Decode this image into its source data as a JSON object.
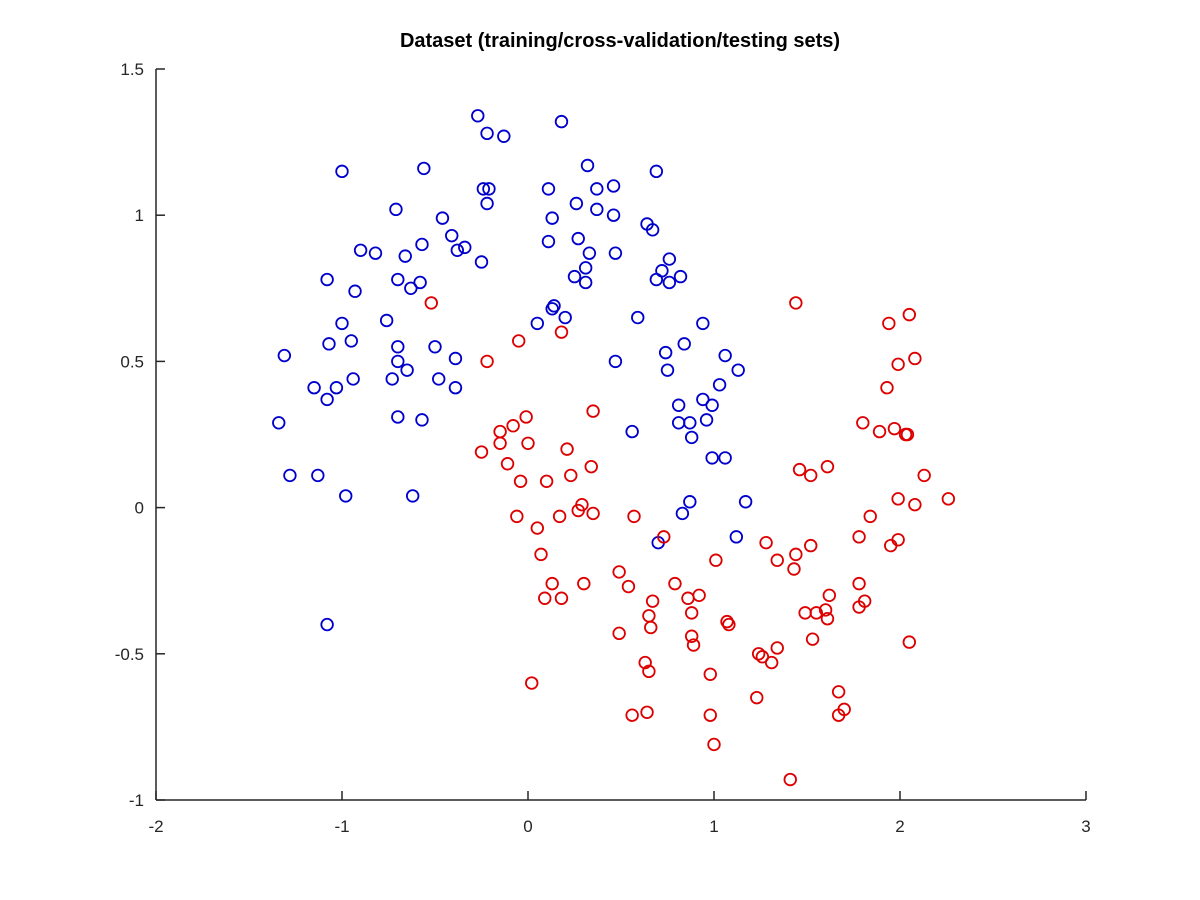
{
  "chart_data": {
    "type": "scatter",
    "title": "Dataset (training/cross-validation/testing sets)",
    "xlabel": "",
    "ylabel": "",
    "xlim": [
      -2,
      3
    ],
    "ylim": [
      -1,
      1.5
    ],
    "x_ticks": [
      -2,
      -1,
      0,
      1,
      2,
      3
    ],
    "y_ticks": [
      -1,
      -0.5,
      0,
      0.5,
      1,
      1.5
    ],
    "x_tick_labels": [
      "-2",
      "-1",
      "0",
      "1",
      "2",
      "3"
    ],
    "y_tick_labels": [
      "-1",
      "-0.5",
      "0",
      "0.5",
      "1",
      "1.5"
    ],
    "grid": false,
    "legend": "none",
    "marker": "circle",
    "series": [
      {
        "color": "#0000cc",
        "points": [
          [
            -0.27,
            1.34
          ],
          [
            -0.22,
            1.28
          ],
          [
            -0.13,
            1.27
          ],
          [
            0.18,
            1.32
          ],
          [
            -1.0,
            1.15
          ],
          [
            -0.56,
            1.16
          ],
          [
            0.32,
            1.17
          ],
          [
            0.69,
            1.15
          ],
          [
            -0.24,
            1.09
          ],
          [
            -0.21,
            1.09
          ],
          [
            0.11,
            1.09
          ],
          [
            0.37,
            1.09
          ],
          [
            0.46,
            1.1
          ],
          [
            -0.22,
            1.04
          ],
          [
            0.26,
            1.04
          ],
          [
            -0.71,
            1.02
          ],
          [
            0.37,
            1.02
          ],
          [
            0.46,
            1.0
          ],
          [
            -0.46,
            0.99
          ],
          [
            0.13,
            0.99
          ],
          [
            0.64,
            0.97
          ],
          [
            0.67,
            0.95
          ],
          [
            -0.41,
            0.93
          ],
          [
            0.27,
            0.92
          ],
          [
            -0.34,
            0.89
          ],
          [
            -0.38,
            0.88
          ],
          [
            0.11,
            0.91
          ],
          [
            -0.9,
            0.88
          ],
          [
            -0.82,
            0.87
          ],
          [
            -0.57,
            0.9
          ],
          [
            0.33,
            0.87
          ],
          [
            0.47,
            0.87
          ],
          [
            -0.66,
            0.86
          ],
          [
            0.76,
            0.85
          ],
          [
            -0.25,
            0.84
          ],
          [
            0.31,
            0.82
          ],
          [
            0.72,
            0.81
          ],
          [
            -1.08,
            0.78
          ],
          [
            -0.7,
            0.78
          ],
          [
            0.25,
            0.79
          ],
          [
            0.69,
            0.78
          ],
          [
            0.82,
            0.79
          ],
          [
            -0.58,
            0.77
          ],
          [
            0.31,
            0.77
          ],
          [
            0.76,
            0.77
          ],
          [
            -0.63,
            0.75
          ],
          [
            -0.93,
            0.74
          ],
          [
            0.14,
            0.69
          ],
          [
            0.13,
            0.68
          ],
          [
            0.2,
            0.65
          ],
          [
            -0.76,
            0.64
          ],
          [
            0.59,
            0.65
          ],
          [
            0.94,
            0.63
          ],
          [
            -1.0,
            0.63
          ],
          [
            0.05,
            0.63
          ],
          [
            -1.07,
            0.56
          ],
          [
            -0.95,
            0.57
          ],
          [
            -0.7,
            0.55
          ],
          [
            -0.5,
            0.55
          ],
          [
            0.84,
            0.56
          ],
          [
            0.74,
            0.53
          ],
          [
            -1.31,
            0.52
          ],
          [
            -0.39,
            0.51
          ],
          [
            0.47,
            0.5
          ],
          [
            1.06,
            0.52
          ],
          [
            -0.7,
            0.5
          ],
          [
            -0.65,
            0.47
          ],
          [
            0.75,
            0.47
          ],
          [
            1.13,
            0.47
          ],
          [
            -0.94,
            0.44
          ],
          [
            -0.73,
            0.44
          ],
          [
            -0.48,
            0.44
          ],
          [
            -1.15,
            0.41
          ],
          [
            -1.03,
            0.41
          ],
          [
            -0.39,
            0.41
          ],
          [
            1.03,
            0.42
          ],
          [
            -1.08,
            0.37
          ],
          [
            0.94,
            0.37
          ],
          [
            0.81,
            0.35
          ],
          [
            0.99,
            0.35
          ],
          [
            -1.34,
            0.29
          ],
          [
            -0.7,
            0.31
          ],
          [
            -0.57,
            0.3
          ],
          [
            0.96,
            0.3
          ],
          [
            0.81,
            0.29
          ],
          [
            0.87,
            0.29
          ],
          [
            0.56,
            0.26
          ],
          [
            0.88,
            0.24
          ],
          [
            0.99,
            0.17
          ],
          [
            1.06,
            0.17
          ],
          [
            -1.28,
            0.11
          ],
          [
            -1.13,
            0.11
          ],
          [
            -0.98,
            0.04
          ],
          [
            -0.62,
            0.04
          ],
          [
            0.87,
            0.02
          ],
          [
            1.17,
            0.02
          ],
          [
            0.83,
            -0.02
          ],
          [
            1.12,
            -0.1
          ],
          [
            0.7,
            -0.12
          ],
          [
            -1.08,
            -0.4
          ]
        ]
      },
      {
        "color": "#dd0000",
        "points": [
          [
            -0.52,
            0.7
          ],
          [
            1.44,
            0.7
          ],
          [
            2.05,
            0.66
          ],
          [
            1.94,
            0.63
          ],
          [
            0.18,
            0.6
          ],
          [
            -0.05,
            0.57
          ],
          [
            2.08,
            0.51
          ],
          [
            -0.22,
            0.5
          ],
          [
            1.99,
            0.49
          ],
          [
            1.93,
            0.41
          ],
          [
            0.35,
            0.33
          ],
          [
            -0.01,
            0.31
          ],
          [
            -0.08,
            0.28
          ],
          [
            1.8,
            0.29
          ],
          [
            1.97,
            0.27
          ],
          [
            -0.15,
            0.26
          ],
          [
            1.89,
            0.26
          ],
          [
            2.03,
            0.25
          ],
          [
            2.04,
            0.25
          ],
          [
            -0.15,
            0.22
          ],
          [
            0.0,
            0.22
          ],
          [
            0.21,
            0.2
          ],
          [
            -0.25,
            0.19
          ],
          [
            -0.11,
            0.15
          ],
          [
            0.34,
            0.14
          ],
          [
            1.61,
            0.14
          ],
          [
            1.46,
            0.13
          ],
          [
            1.52,
            0.11
          ],
          [
            2.13,
            0.11
          ],
          [
            0.23,
            0.11
          ],
          [
            0.1,
            0.09
          ],
          [
            -0.04,
            0.09
          ],
          [
            1.99,
            0.03
          ],
          [
            2.26,
            0.03
          ],
          [
            0.29,
            0.01
          ],
          [
            2.08,
            0.01
          ],
          [
            0.27,
            -0.01
          ],
          [
            -0.06,
            -0.03
          ],
          [
            0.17,
            -0.03
          ],
          [
            0.35,
            -0.02
          ],
          [
            0.57,
            -0.03
          ],
          [
            1.84,
            -0.03
          ],
          [
            0.05,
            -0.07
          ],
          [
            0.73,
            -0.1
          ],
          [
            1.78,
            -0.1
          ],
          [
            1.99,
            -0.11
          ],
          [
            1.28,
            -0.12
          ],
          [
            1.52,
            -0.13
          ],
          [
            1.95,
            -0.13
          ],
          [
            1.44,
            -0.16
          ],
          [
            0.07,
            -0.16
          ],
          [
            1.01,
            -0.18
          ],
          [
            1.34,
            -0.18
          ],
          [
            1.43,
            -0.21
          ],
          [
            0.49,
            -0.22
          ],
          [
            0.13,
            -0.26
          ],
          [
            0.3,
            -0.26
          ],
          [
            0.79,
            -0.26
          ],
          [
            1.78,
            -0.26
          ],
          [
            0.54,
            -0.27
          ],
          [
            1.62,
            -0.3
          ],
          [
            0.86,
            -0.31
          ],
          [
            0.92,
            -0.3
          ],
          [
            0.09,
            -0.31
          ],
          [
            0.18,
            -0.31
          ],
          [
            0.67,
            -0.32
          ],
          [
            1.81,
            -0.32
          ],
          [
            1.78,
            -0.34
          ],
          [
            1.49,
            -0.36
          ],
          [
            1.55,
            -0.36
          ],
          [
            1.6,
            -0.35
          ],
          [
            0.88,
            -0.36
          ],
          [
            0.65,
            -0.37
          ],
          [
            1.61,
            -0.38
          ],
          [
            1.07,
            -0.39
          ],
          [
            1.08,
            -0.4
          ],
          [
            0.66,
            -0.41
          ],
          [
            0.49,
            -0.43
          ],
          [
            0.88,
            -0.44
          ],
          [
            1.53,
            -0.45
          ],
          [
            2.05,
            -0.46
          ],
          [
            0.89,
            -0.47
          ],
          [
            1.34,
            -0.48
          ],
          [
            1.24,
            -0.5
          ],
          [
            1.26,
            -0.51
          ],
          [
            1.31,
            -0.53
          ],
          [
            0.63,
            -0.53
          ],
          [
            0.65,
            -0.56
          ],
          [
            0.98,
            -0.57
          ],
          [
            0.02,
            -0.6
          ],
          [
            1.67,
            -0.63
          ],
          [
            1.23,
            -0.65
          ],
          [
            0.64,
            -0.7
          ],
          [
            1.7,
            -0.69
          ],
          [
            0.56,
            -0.71
          ],
          [
            0.98,
            -0.71
          ],
          [
            1.67,
            -0.71
          ],
          [
            1.0,
            -0.81
          ],
          [
            1.41,
            -0.93
          ]
        ]
      }
    ]
  }
}
